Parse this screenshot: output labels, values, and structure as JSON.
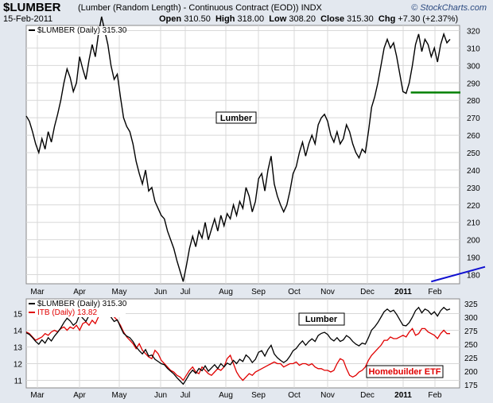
{
  "header": {
    "symbol": "$LUMBER",
    "description": "(Lumber (Random Length) - Continuous Contract (EOD)) INDX",
    "date": "15-Feb-2011",
    "open_label": "Open",
    "open": "310.50",
    "high_label": "High",
    "high": "318.00",
    "low_label": "Low",
    "low": "308.20",
    "close_label": "Close",
    "close": "315.30",
    "chg_label": "Chg",
    "chg": "+7.30 (+2.37%)",
    "watermark": "© StockCharts.com"
  },
  "colors": {
    "lumber": "#000000",
    "itb": "#e00000",
    "trendline": "#1010d0",
    "support": "#008000",
    "panel": "#ffffff",
    "background": "#e3e8ef"
  },
  "chart_data": [
    {
      "type": "line",
      "legend": "$LUMBER (Daily) 315.30",
      "annotation": "Lumber",
      "x_ticks": [
        "Mar",
        "Apr",
        "May",
        "Jun",
        "Jul",
        "Aug",
        "Sep",
        "Oct",
        "Nov",
        "Dec",
        "2011",
        "Feb"
      ],
      "y_ticks": [
        180,
        190,
        200,
        210,
        220,
        230,
        240,
        250,
        260,
        270,
        280,
        290,
        300,
        310,
        320
      ],
      "ylim": [
        175,
        325
      ],
      "series": [
        {
          "name": "$LUMBER (Daily)",
          "values": [
            271,
            268,
            262,
            255,
            250,
            258,
            252,
            262,
            256,
            265,
            272,
            280,
            290,
            298,
            293,
            285,
            290,
            305,
            298,
            292,
            303,
            312,
            305,
            318,
            328,
            320,
            312,
            300,
            292,
            295,
            282,
            270,
            265,
            262,
            255,
            245,
            238,
            232,
            240,
            228,
            230,
            222,
            218,
            214,
            212,
            205,
            200,
            195,
            188,
            182,
            176,
            185,
            195,
            202,
            196,
            205,
            201,
            210,
            200,
            206,
            212,
            205,
            214,
            208,
            215,
            212,
            220,
            214,
            222,
            218,
            230,
            225,
            216,
            222,
            235,
            238,
            228,
            240,
            248,
            232,
            225,
            220,
            216,
            220,
            228,
            238,
            242,
            250,
            256,
            248,
            255,
            260,
            255,
            266,
            270,
            272,
            268,
            260,
            256,
            262,
            255,
            258,
            266,
            262,
            255,
            250,
            247,
            252,
            250,
            262,
            276,
            282,
            290,
            300,
            310,
            315,
            310,
            313,
            305,
            295,
            285,
            284,
            290,
            300,
            312,
            318,
            308,
            315,
            312,
            305,
            310,
            302,
            312,
            318,
            313,
            315
          ]
        }
      ],
      "trendline": {
        "start": [
          129,
          176
        ],
        "end": [
          372,
          296
        ]
      },
      "support_line": {
        "level": 284.5,
        "start_index": 123,
        "end_index": 135
      }
    },
    {
      "type": "line",
      "legend": [
        {
          "label": "$LUMBER (Daily) 315.30",
          "color": "#000000"
        },
        {
          "label": "ITB (Daily) 13.82",
          "color": "#e00000"
        }
      ],
      "annotations": [
        "Lumber",
        "Homebuilder ETF"
      ],
      "x_ticks": [
        "Mar",
        "Apr",
        "May",
        "Jun",
        "Jul",
        "Aug",
        "Sep",
        "Oct",
        "Nov",
        "Dec",
        "2011",
        "Feb"
      ],
      "y_ticks_left": [
        11,
        12,
        13,
        14,
        15
      ],
      "y_ticks_right": [
        175,
        200,
        225,
        250,
        275,
        300,
        325
      ],
      "ylim_left": [
        10.6,
        15.8
      ],
      "ylim_right": [
        168,
        330
      ],
      "series": [
        {
          "name": "ITB (Daily)",
          "axis": "left",
          "values": [
            13.9,
            13.8,
            13.6,
            13.4,
            13.5,
            13.6,
            13.8,
            13.7,
            13.9,
            14.0,
            13.9,
            14.1,
            14.2,
            14.0,
            14.2,
            14.1,
            14.3,
            14.0,
            14.4,
            14.5,
            14.3,
            14.6,
            14.4,
            14.8,
            15.5,
            15.2,
            14.9,
            15.1,
            14.8,
            14.6,
            14.3,
            13.9,
            13.6,
            13.4,
            13.2,
            12.9,
            13.2,
            12.8,
            12.6,
            12.4,
            12.3,
            12.8,
            12.6,
            12.2,
            12.0,
            11.8,
            11.6,
            11.5,
            11.3,
            11.2,
            11.0,
            11.3,
            11.6,
            11.8,
            11.5,
            11.4,
            11.8,
            11.6,
            11.4,
            11.3,
            11.5,
            11.7,
            11.6,
            11.8,
            12.3,
            12.5,
            12.0,
            11.5,
            11.2,
            11.0,
            11.2,
            11.4,
            11.3,
            11.5,
            11.6,
            11.7,
            11.8,
            11.9,
            12.0,
            12.1,
            12.0,
            12.0,
            11.8,
            11.9,
            12.0,
            12.0,
            12.1,
            11.9,
            12.0,
            12.0,
            11.9,
            12.0,
            11.8,
            11.7,
            11.7,
            11.6,
            11.6,
            11.5,
            11.6,
            12.0,
            12.3,
            12.2,
            11.7,
            11.3,
            11.2,
            11.3,
            11.5,
            11.6,
            11.8,
            12.2,
            12.5,
            12.7,
            12.9,
            13.1,
            13.4,
            13.4,
            13.6,
            13.5,
            13.5,
            13.6,
            13.7,
            13.6,
            13.9,
            14.1,
            13.7,
            13.8,
            14.1,
            14.1,
            13.9,
            13.8,
            13.7,
            13.5,
            13.8,
            14.0,
            13.8,
            13.8
          ]
        },
        {
          "name": "$LUMBER (Daily)",
          "axis": "right",
          "values": [
            271,
            268,
            262,
            255,
            250,
            258,
            252,
            262,
            256,
            265,
            272,
            280,
            290,
            298,
            293,
            285,
            290,
            305,
            298,
            292,
            303,
            312,
            305,
            318,
            328,
            320,
            312,
            300,
            292,
            295,
            282,
            270,
            265,
            262,
            255,
            245,
            238,
            232,
            240,
            228,
            230,
            222,
            218,
            214,
            212,
            205,
            200,
            195,
            188,
            182,
            176,
            185,
            195,
            202,
            196,
            205,
            201,
            210,
            200,
            206,
            212,
            205,
            214,
            208,
            215,
            212,
            220,
            214,
            222,
            218,
            230,
            225,
            216,
            222,
            235,
            238,
            228,
            240,
            248,
            232,
            225,
            220,
            216,
            220,
            228,
            238,
            242,
            250,
            256,
            248,
            255,
            260,
            255,
            266,
            270,
            272,
            268,
            260,
            256,
            262,
            255,
            258,
            266,
            262,
            255,
            250,
            247,
            252,
            250,
            262,
            276,
            282,
            290,
            300,
            310,
            315,
            310,
            313,
            305,
            295,
            285,
            284,
            290,
            300,
            312,
            318,
            308,
            315,
            312,
            305,
            310,
            302,
            312,
            318,
            313,
            315
          ]
        }
      ]
    }
  ]
}
